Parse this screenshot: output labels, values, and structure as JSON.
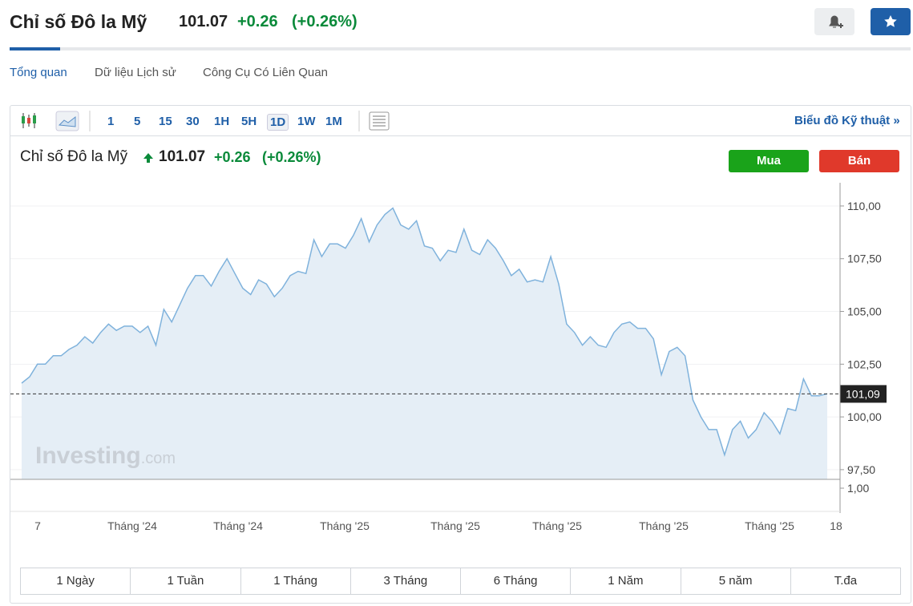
{
  "header": {
    "title": "Chỉ số Đô la Mỹ",
    "price": "101.07",
    "change": "+0.26",
    "change_pct": "(+0.26%)"
  },
  "tabs": [
    "Tổng quan",
    "Dữ liệu Lịch sử",
    "Công Cụ Có Liên Quan"
  ],
  "toolbar": {
    "intervals": [
      "1",
      "5",
      "15",
      "30",
      "1H",
      "5H",
      "1D",
      "1W",
      "1M"
    ],
    "active": "1D",
    "link": "Biểu đồ Kỹ thuật »"
  },
  "chart": {
    "type": "line",
    "title": "Chỉ số Đô la Mỹ",
    "price": "101.07",
    "change": "+0.26",
    "change_pct": "(+0.26%)",
    "buy": "Mua",
    "sell": "Bán",
    "color": "#7fb2dc",
    "values": [
      101.6,
      101.9,
      102.5,
      102.5,
      102.9,
      102.9,
      103.2,
      103.4,
      103.8,
      103.5,
      104.0,
      104.4,
      104.1,
      104.3,
      104.3,
      104.0,
      104.3,
      103.4,
      105.1,
      104.5,
      105.3,
      106.1,
      106.7,
      106.7,
      106.2,
      106.9,
      107.5,
      106.8,
      106.1,
      105.8,
      106.5,
      106.3,
      105.7,
      106.1,
      106.7,
      106.9,
      106.8,
      108.4,
      107.6,
      108.2,
      108.2,
      108.0,
      108.6,
      109.4,
      108.3,
      109.1,
      109.6,
      109.9,
      109.1,
      108.9,
      109.3,
      108.1,
      108.0,
      107.4,
      107.9,
      107.8,
      108.9,
      107.9,
      107.7,
      108.4,
      108.0,
      107.4,
      106.7,
      107.0,
      106.4,
      106.5,
      106.4,
      107.6,
      106.3,
      104.4,
      104.0,
      103.4,
      103.8,
      103.4,
      103.3,
      104.0,
      104.4,
      104.5,
      104.2,
      104.2,
      103.7,
      102.0,
      103.1,
      103.3,
      102.9,
      100.8,
      100.0,
      99.4,
      99.4,
      98.2,
      99.4,
      99.8,
      99.0,
      99.4,
      100.2,
      99.8,
      99.2,
      100.4,
      100.3,
      101.8,
      101.0,
      101.0,
      101.1
    ],
    "ylim": [
      97.04,
      111.1
    ],
    "yticks": [
      {
        "value": 97.5,
        "label": "97,50"
      },
      {
        "value": 100,
        "label": "100,00"
      },
      {
        "value": 102.5,
        "label": "102,50"
      },
      {
        "value": 105,
        "label": "105,00"
      },
      {
        "value": 107.5,
        "label": "107,50"
      },
      {
        "value": 110,
        "label": "110,00"
      }
    ],
    "current": {
      "value": 101.09,
      "label": "101,09"
    },
    "volume_tick": {
      "value": 1,
      "label": "1,00"
    },
    "x_labels": [
      "7",
      "Tháng '24",
      "Tháng '24",
      "Tháng '25",
      "Tháng '25",
      "Tháng '25",
      "Tháng '25",
      "Tháng '25",
      "18"
    ],
    "watermark": "Investing",
    "watermark_suffix": ".com"
  },
  "ranges": [
    "1 Ngày",
    "1 Tuần",
    "1 Tháng",
    "3 Tháng",
    "6 Tháng",
    "1 Năm",
    "5 năm",
    "T.đa"
  ]
}
